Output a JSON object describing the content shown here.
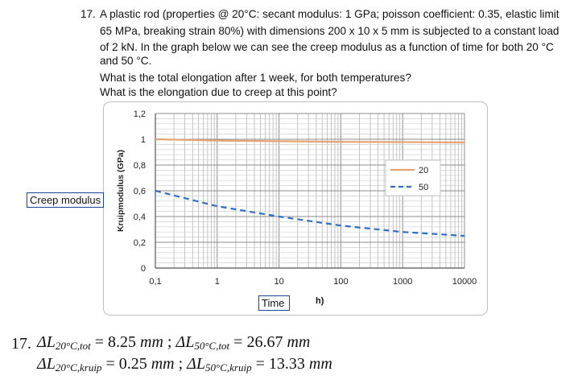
{
  "question": {
    "number": "17.",
    "lines": [
      "A plastic rod (properties @ 20°C: secant modulus: 1 GPa; poisson coefficient: 0.35, elastic limit",
      "65 MPa, breaking strain 80%) with dimensions 200 x 10 x 5 mm is subjected to a constant load",
      "of 2 kN. In the graph below we can see the creep modulus as a function of time for both 20 °C",
      "and 50 °C.",
      "What is the total elongation after 1 week, for both temperatures?",
      "What is the elongation due to creep at this point?"
    ]
  },
  "callouts": {
    "creep_modulus": "Creep modulus",
    "time": "Time",
    "time_suffix": "h)"
  },
  "chart_data": {
    "type": "line",
    "ylabel": "Kruipmodulus (GPa)",
    "xlabel": "",
    "xscale": "log",
    "xlim": [
      0.1,
      10000
    ],
    "ylim": [
      0,
      1.2
    ],
    "x_tick_labels": [
      "0,1",
      "1",
      "10",
      "100",
      "1000",
      "10000"
    ],
    "y_tick_labels": [
      "0",
      "0,2",
      "0,4",
      "0,6",
      "0,8",
      "1",
      "1,2"
    ],
    "grid": true,
    "legend": "right",
    "series": [
      {
        "name": "20",
        "color": "#e6a371",
        "style": "solid",
        "x": [
          0.1,
          1,
          10,
          100,
          1000,
          10000
        ],
        "y": [
          1.0,
          0.99,
          0.985,
          0.98,
          0.978,
          0.975
        ]
      },
      {
        "name": "50",
        "color": "#2e6fc7",
        "style": "dashed",
        "x": [
          0.1,
          1,
          10,
          100,
          1000,
          10000
        ],
        "y": [
          0.6,
          0.48,
          0.4,
          0.33,
          0.28,
          0.25
        ]
      }
    ]
  },
  "answer": {
    "number": "17.",
    "line1": {
      "t1_sym": "ΔL",
      "t1_sub": "20°C,tot",
      "t1_val": "= 8.25",
      "t1_unit": "mm",
      "sep": ";",
      "t2_sym": "ΔL",
      "t2_sub": "50°C,tot",
      "t2_val": "= 26.67",
      "t2_unit": "mm"
    },
    "line2": {
      "t1_sym": "ΔL",
      "t1_sub": "20°C,kruip",
      "t1_val": "= 0.25",
      "t1_unit": "mm",
      "sep": ";",
      "t2_sym": "ΔL",
      "t2_sub": "50°C,kruip",
      "t2_val": "= 13.33",
      "t2_unit": "mm"
    }
  }
}
